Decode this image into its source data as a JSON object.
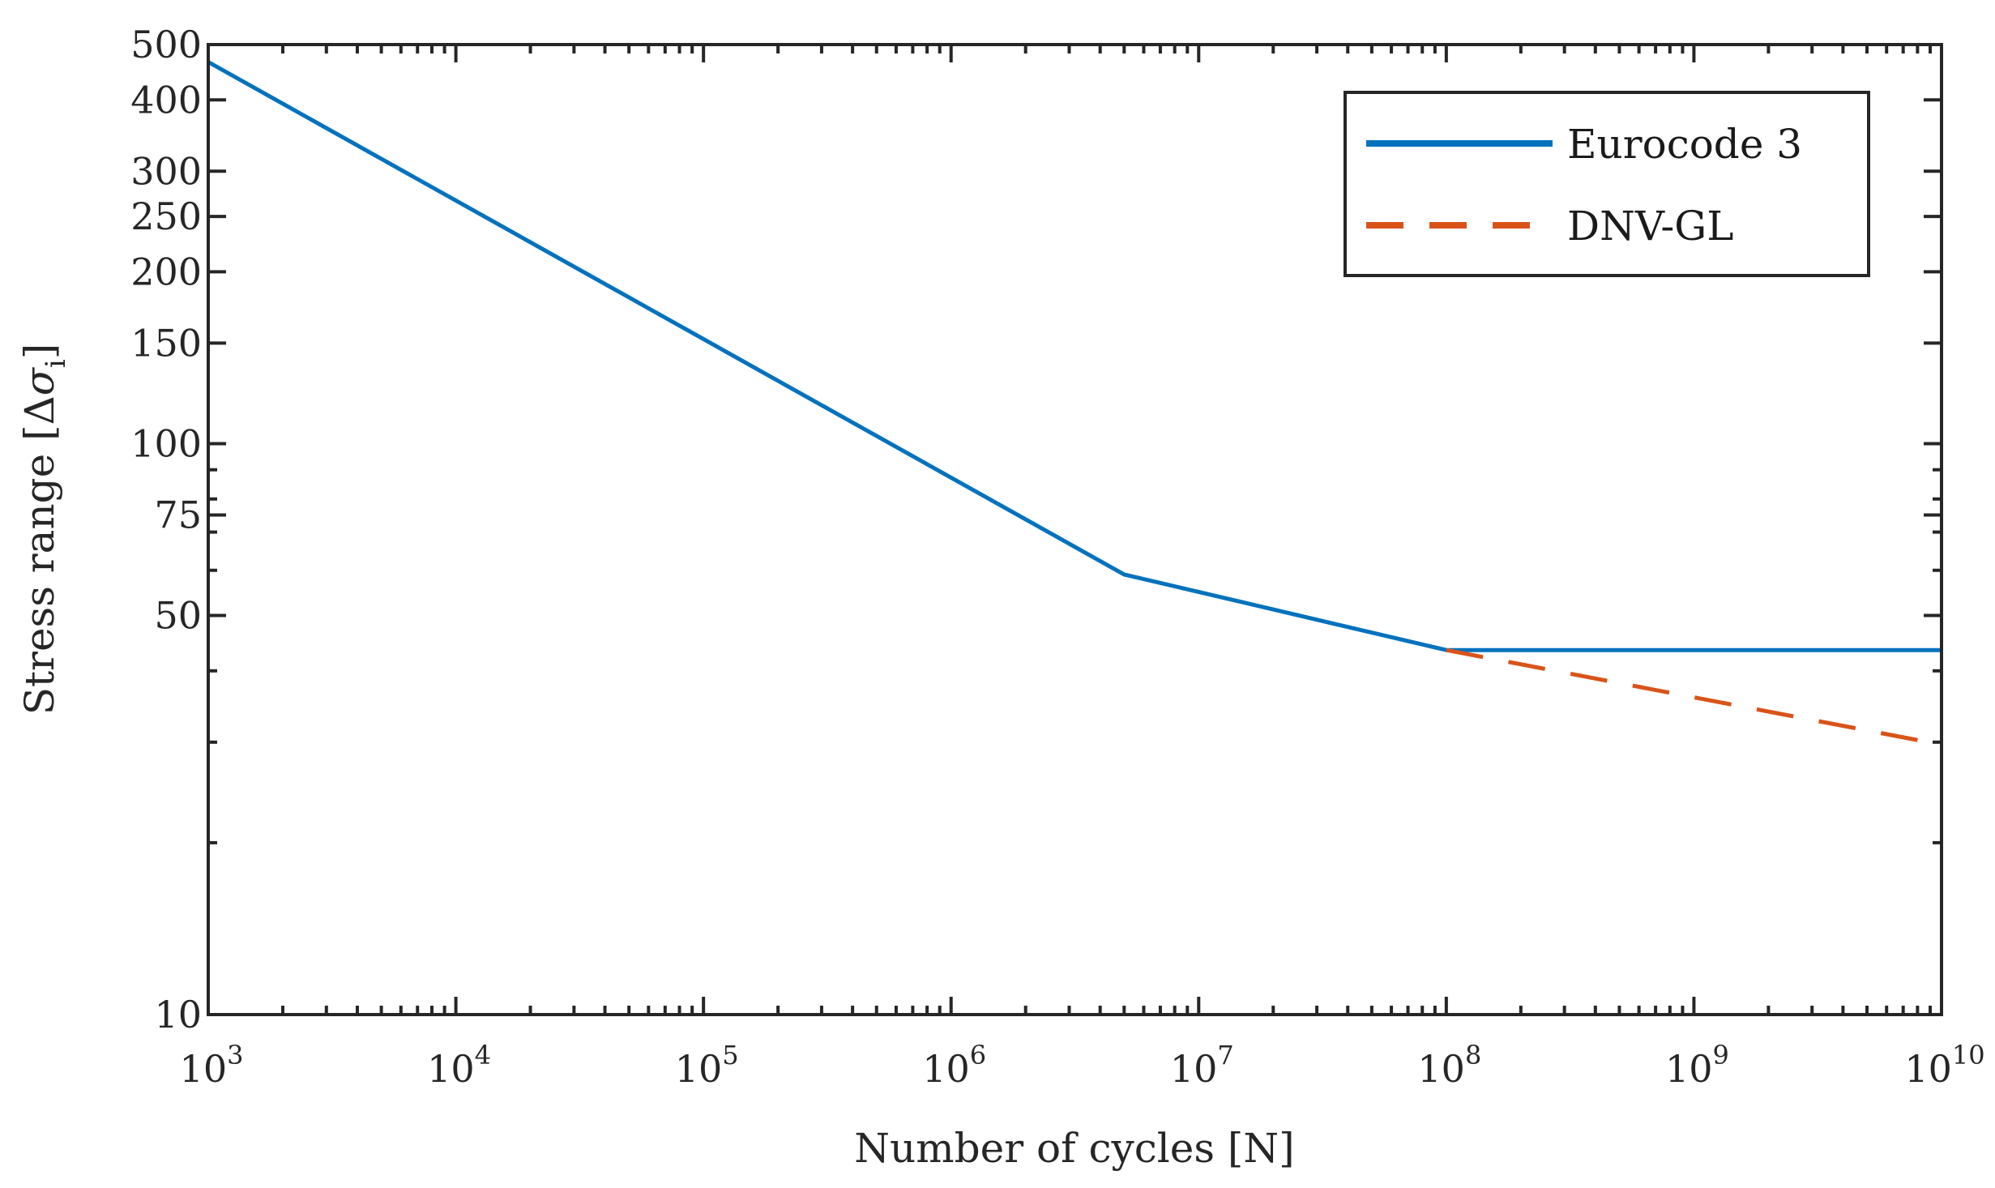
{
  "chart_data": {
    "type": "line",
    "title": "",
    "xlabel": "Number of cycles [N]",
    "ylabel_prefix": "Stress range [Δ",
    "ylabel_sigma": "σ",
    "ylabel_sub": "i",
    "ylabel_suffix": "]",
    "xscale": "log",
    "yscale": "log",
    "xlim": [
      1000,
      10000000000
    ],
    "ylim": [
      10,
      500
    ],
    "xticks": [
      {
        "value": 1000,
        "base": "10",
        "exp": "3"
      },
      {
        "value": 10000,
        "base": "10",
        "exp": "4"
      },
      {
        "value": 100000,
        "base": "10",
        "exp": "5"
      },
      {
        "value": 1000000,
        "base": "10",
        "exp": "6"
      },
      {
        "value": 10000000,
        "base": "10",
        "exp": "7"
      },
      {
        "value": 100000000,
        "base": "10",
        "exp": "8"
      },
      {
        "value": 1000000000,
        "base": "10",
        "exp": "9"
      },
      {
        "value": 10000000000,
        "base": "10",
        "exp": "10"
      }
    ],
    "yticks": [
      {
        "value": 10,
        "label": "10"
      },
      {
        "value": 50,
        "label": "50"
      },
      {
        "value": 75,
        "label": "75"
      },
      {
        "value": 100,
        "label": "100"
      },
      {
        "value": 150,
        "label": "150"
      },
      {
        "value": 200,
        "label": "200"
      },
      {
        "value": 250,
        "label": "250"
      },
      {
        "value": 300,
        "label": "300"
      },
      {
        "value": 400,
        "label": "400"
      },
      {
        "value": 500,
        "label": "500"
      }
    ],
    "yminor_ticks": [
      20,
      30,
      40,
      60,
      70,
      80,
      90
    ],
    "legend_position": "top-right",
    "series": [
      {
        "name": "Eurocode 3",
        "color": "#0072BD",
        "style": "solid",
        "x": [
          1000,
          5000000,
          100000000,
          10000000000
        ],
        "y": [
          466,
          59,
          43.5,
          43.5
        ]
      },
      {
        "name": "DNV-GL",
        "color": "#D95319",
        "style": "dashed",
        "x": [
          100000000,
          10000000000
        ],
        "y": [
          43.5,
          29.7
        ]
      }
    ]
  }
}
